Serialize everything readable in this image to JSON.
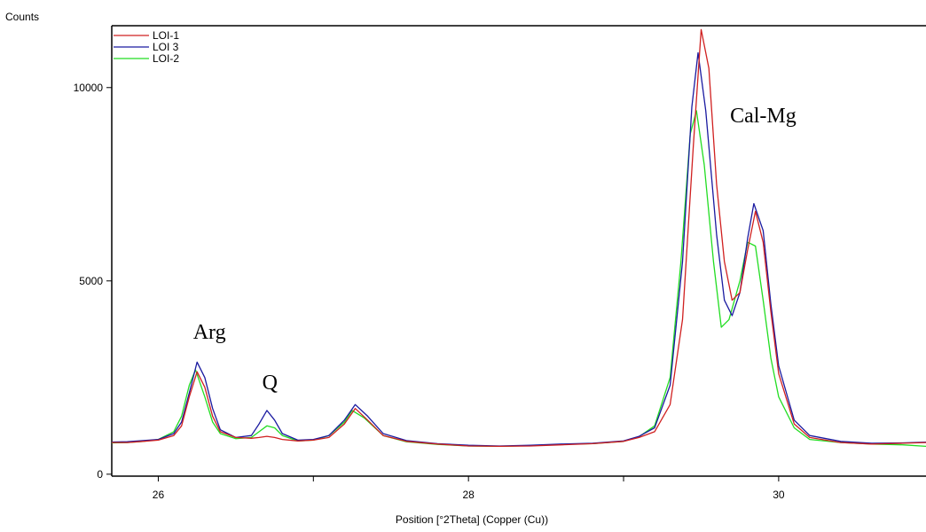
{
  "chart_data": {
    "type": "line",
    "title": "",
    "ylabel": "Counts",
    "xlabel": "Position [°2Theta] (Copper (Cu))",
    "xlim": [
      25.7,
      30.95
    ],
    "ylim": [
      -50,
      11600
    ],
    "xticks": [
      26,
      28,
      30
    ],
    "xtick_labels": [
      "26",
      "28",
      "30"
    ],
    "yticks": [
      0,
      5000,
      10000
    ],
    "ytick_labels": [
      "0",
      "5000",
      "10000"
    ],
    "grid": false,
    "legend_position": "top-left",
    "annotations": [
      {
        "text": "Arg",
        "x": 26.33,
        "y": 3500
      },
      {
        "text": "Q",
        "x": 26.72,
        "y": 2200
      },
      {
        "text": "Cal-Mg",
        "x": 29.9,
        "y": 9100
      }
    ],
    "series": [
      {
        "name": "LOI-1",
        "color": "#d02020",
        "points": [
          [
            25.7,
            820
          ],
          [
            25.8,
            820
          ],
          [
            25.9,
            850
          ],
          [
            26.0,
            880
          ],
          [
            26.1,
            1000
          ],
          [
            26.15,
            1250
          ],
          [
            26.2,
            2000
          ],
          [
            26.25,
            2650
          ],
          [
            26.3,
            2250
          ],
          [
            26.35,
            1500
          ],
          [
            26.4,
            1100
          ],
          [
            26.5,
            950
          ],
          [
            26.6,
            930
          ],
          [
            26.65,
            950
          ],
          [
            26.7,
            980
          ],
          [
            26.75,
            950
          ],
          [
            26.8,
            900
          ],
          [
            26.9,
            860
          ],
          [
            27.0,
            880
          ],
          [
            27.1,
            950
          ],
          [
            27.2,
            1300
          ],
          [
            27.27,
            1700
          ],
          [
            27.35,
            1400
          ],
          [
            27.45,
            1000
          ],
          [
            27.6,
            850
          ],
          [
            27.8,
            780
          ],
          [
            28.0,
            730
          ],
          [
            28.2,
            720
          ],
          [
            28.4,
            730
          ],
          [
            28.6,
            760
          ],
          [
            28.8,
            790
          ],
          [
            29.0,
            850
          ],
          [
            29.1,
            950
          ],
          [
            29.2,
            1100
          ],
          [
            29.3,
            1800
          ],
          [
            29.38,
            4000
          ],
          [
            29.45,
            8500
          ],
          [
            29.5,
            11500
          ],
          [
            29.55,
            10500
          ],
          [
            29.6,
            7500
          ],
          [
            29.65,
            5500
          ],
          [
            29.7,
            4500
          ],
          [
            29.75,
            4700
          ],
          [
            29.8,
            5800
          ],
          [
            29.85,
            6800
          ],
          [
            29.9,
            6000
          ],
          [
            29.95,
            4200
          ],
          [
            30.0,
            2600
          ],
          [
            30.1,
            1300
          ],
          [
            30.2,
            950
          ],
          [
            30.4,
            820
          ],
          [
            30.6,
            780
          ],
          [
            30.8,
            800
          ],
          [
            30.95,
            820
          ]
        ]
      },
      {
        "name": "LOI 3",
        "color": "#1a1aa0",
        "points": [
          [
            25.7,
            830
          ],
          [
            25.8,
            840
          ],
          [
            25.9,
            870
          ],
          [
            26.0,
            900
          ],
          [
            26.1,
            1050
          ],
          [
            26.15,
            1350
          ],
          [
            26.2,
            2100
          ],
          [
            26.25,
            2900
          ],
          [
            26.3,
            2500
          ],
          [
            26.35,
            1700
          ],
          [
            26.4,
            1150
          ],
          [
            26.5,
            950
          ],
          [
            26.6,
            1000
          ],
          [
            26.65,
            1300
          ],
          [
            26.7,
            1650
          ],
          [
            26.75,
            1400
          ],
          [
            26.8,
            1050
          ],
          [
            26.9,
            880
          ],
          [
            27.0,
            900
          ],
          [
            27.1,
            1000
          ],
          [
            27.2,
            1400
          ],
          [
            27.27,
            1800
          ],
          [
            27.35,
            1500
          ],
          [
            27.45,
            1050
          ],
          [
            27.6,
            870
          ],
          [
            27.8,
            790
          ],
          [
            28.0,
            750
          ],
          [
            28.2,
            730
          ],
          [
            28.4,
            750
          ],
          [
            28.6,
            780
          ],
          [
            28.8,
            800
          ],
          [
            29.0,
            860
          ],
          [
            29.1,
            980
          ],
          [
            29.2,
            1200
          ],
          [
            29.3,
            2300
          ],
          [
            29.38,
            5500
          ],
          [
            29.44,
            9500
          ],
          [
            29.48,
            10900
          ],
          [
            29.53,
            9400
          ],
          [
            29.6,
            6200
          ],
          [
            29.65,
            4500
          ],
          [
            29.7,
            4100
          ],
          [
            29.75,
            4700
          ],
          [
            29.8,
            6100
          ],
          [
            29.84,
            7000
          ],
          [
            29.9,
            6300
          ],
          [
            29.95,
            4400
          ],
          [
            30.0,
            2800
          ],
          [
            30.1,
            1400
          ],
          [
            30.2,
            1000
          ],
          [
            30.4,
            850
          ],
          [
            30.6,
            800
          ],
          [
            30.8,
            810
          ],
          [
            30.95,
            830
          ]
        ]
      },
      {
        "name": "LOI-2",
        "color": "#22dd22",
        "points": [
          [
            25.7,
            810
          ],
          [
            25.8,
            820
          ],
          [
            25.9,
            850
          ],
          [
            26.0,
            900
          ],
          [
            26.1,
            1100
          ],
          [
            26.15,
            1500
          ],
          [
            26.2,
            2300
          ],
          [
            26.24,
            2700
          ],
          [
            26.3,
            2000
          ],
          [
            26.35,
            1350
          ],
          [
            26.4,
            1050
          ],
          [
            26.5,
            920
          ],
          [
            26.6,
            950
          ],
          [
            26.65,
            1100
          ],
          [
            26.7,
            1250
          ],
          [
            26.75,
            1200
          ],
          [
            26.8,
            1000
          ],
          [
            26.9,
            860
          ],
          [
            27.0,
            880
          ],
          [
            27.1,
            1000
          ],
          [
            27.2,
            1350
          ],
          [
            27.25,
            1650
          ],
          [
            27.33,
            1450
          ],
          [
            27.45,
            1000
          ],
          [
            27.6,
            840
          ],
          [
            27.8,
            770
          ],
          [
            28.0,
            730
          ],
          [
            28.2,
            720
          ],
          [
            28.4,
            740
          ],
          [
            28.6,
            770
          ],
          [
            28.8,
            790
          ],
          [
            29.0,
            850
          ],
          [
            29.1,
            970
          ],
          [
            29.2,
            1250
          ],
          [
            29.3,
            2500
          ],
          [
            29.37,
            5500
          ],
          [
            29.43,
            8800
          ],
          [
            29.47,
            9400
          ],
          [
            29.52,
            8000
          ],
          [
            29.58,
            5500
          ],
          [
            29.63,
            3800
          ],
          [
            29.68,
            4000
          ],
          [
            29.75,
            5000
          ],
          [
            29.8,
            6000
          ],
          [
            29.85,
            5900
          ],
          [
            29.9,
            4500
          ],
          [
            29.95,
            3000
          ],
          [
            30.0,
            2000
          ],
          [
            30.1,
            1200
          ],
          [
            30.2,
            900
          ],
          [
            30.4,
            820
          ],
          [
            30.6,
            780
          ],
          [
            30.8,
            760
          ],
          [
            30.95,
            720
          ]
        ]
      }
    ]
  }
}
